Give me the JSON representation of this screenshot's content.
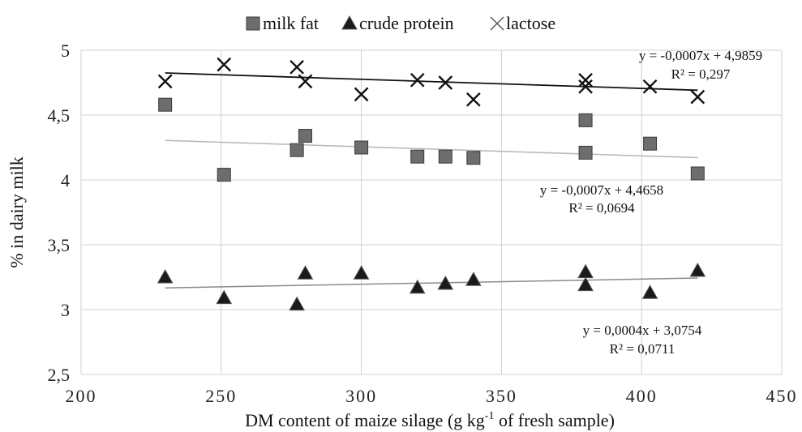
{
  "chart_data": {
    "type": "scatter",
    "xlabel": "DM  content of maize silage (g kg-1 of fresh sample)",
    "xlabel_parts": [
      "DM  content of maize silage (g kg",
      "-1",
      " of fresh sample)"
    ],
    "ylabel": "% in dairy milk",
    "xlim": [
      200,
      450
    ],
    "ylim": [
      2.5,
      5
    ],
    "x_ticks": [
      200,
      250,
      300,
      350,
      400,
      450
    ],
    "x_tick_labels": [
      "200",
      "250",
      "300",
      "350",
      "400",
      "450"
    ],
    "y_ticks": [
      2.5,
      3,
      3.5,
      4,
      4.5,
      5
    ],
    "y_tick_labels": [
      "2,5",
      "3",
      "3,5",
      "4",
      "4,5",
      "5"
    ],
    "grid": true,
    "legend_position": "top",
    "series": [
      {
        "name": "milk fat",
        "marker": "square",
        "color": "#6d6d6d",
        "points": [
          [
            230,
            4.58
          ],
          [
            251,
            4.04
          ],
          [
            277,
            4.23
          ],
          [
            280,
            4.34
          ],
          [
            300,
            4.25
          ],
          [
            320,
            4.18
          ],
          [
            330,
            4.18
          ],
          [
            340,
            4.17
          ],
          [
            380,
            4.46
          ],
          [
            380,
            4.21
          ],
          [
            403,
            4.28
          ],
          [
            420,
            4.05
          ]
        ],
        "trendline": {
          "slope": -0.0007,
          "intercept": 4.4658,
          "x_range": [
            230,
            420
          ],
          "color": "#b5b5b5"
        },
        "equation": "y = -0,0007x + 4,4658",
        "r2": "R² = 0,0694"
      },
      {
        "name": "crude protein",
        "marker": "triangle",
        "color": "#1a1a1a",
        "points": [
          [
            230,
            3.25
          ],
          [
            251,
            3.09
          ],
          [
            277,
            3.04
          ],
          [
            280,
            3.28
          ],
          [
            300,
            3.28
          ],
          [
            320,
            3.17
          ],
          [
            330,
            3.2
          ],
          [
            340,
            3.23
          ],
          [
            380,
            3.29
          ],
          [
            380,
            3.19
          ],
          [
            403,
            3.13
          ],
          [
            420,
            3.3
          ]
        ],
        "trendline": {
          "slope": 0.0004,
          "intercept": 3.0754,
          "x_range": [
            230,
            420
          ],
          "color": "#8a8a8a"
        },
        "equation": "y = 0,0004x + 3,0754",
        "r2": "R² = 0,0711"
      },
      {
        "name": "lactose",
        "marker": "x",
        "color": "#111111",
        "points": [
          [
            230,
            4.76
          ],
          [
            251,
            4.89
          ],
          [
            277,
            4.87
          ],
          [
            280,
            4.76
          ],
          [
            300,
            4.66
          ],
          [
            320,
            4.77
          ],
          [
            330,
            4.75
          ],
          [
            340,
            4.62
          ],
          [
            380,
            4.77
          ],
          [
            380,
            4.72
          ],
          [
            403,
            4.72
          ],
          [
            420,
            4.64
          ]
        ],
        "trendline": {
          "slope": -0.0007,
          "intercept": 4.9859,
          "x_range": [
            230,
            420
          ],
          "color": "#111111"
        },
        "equation": "y = -0,0007x + 4,9859",
        "r2": "R² = 0,297"
      }
    ]
  }
}
